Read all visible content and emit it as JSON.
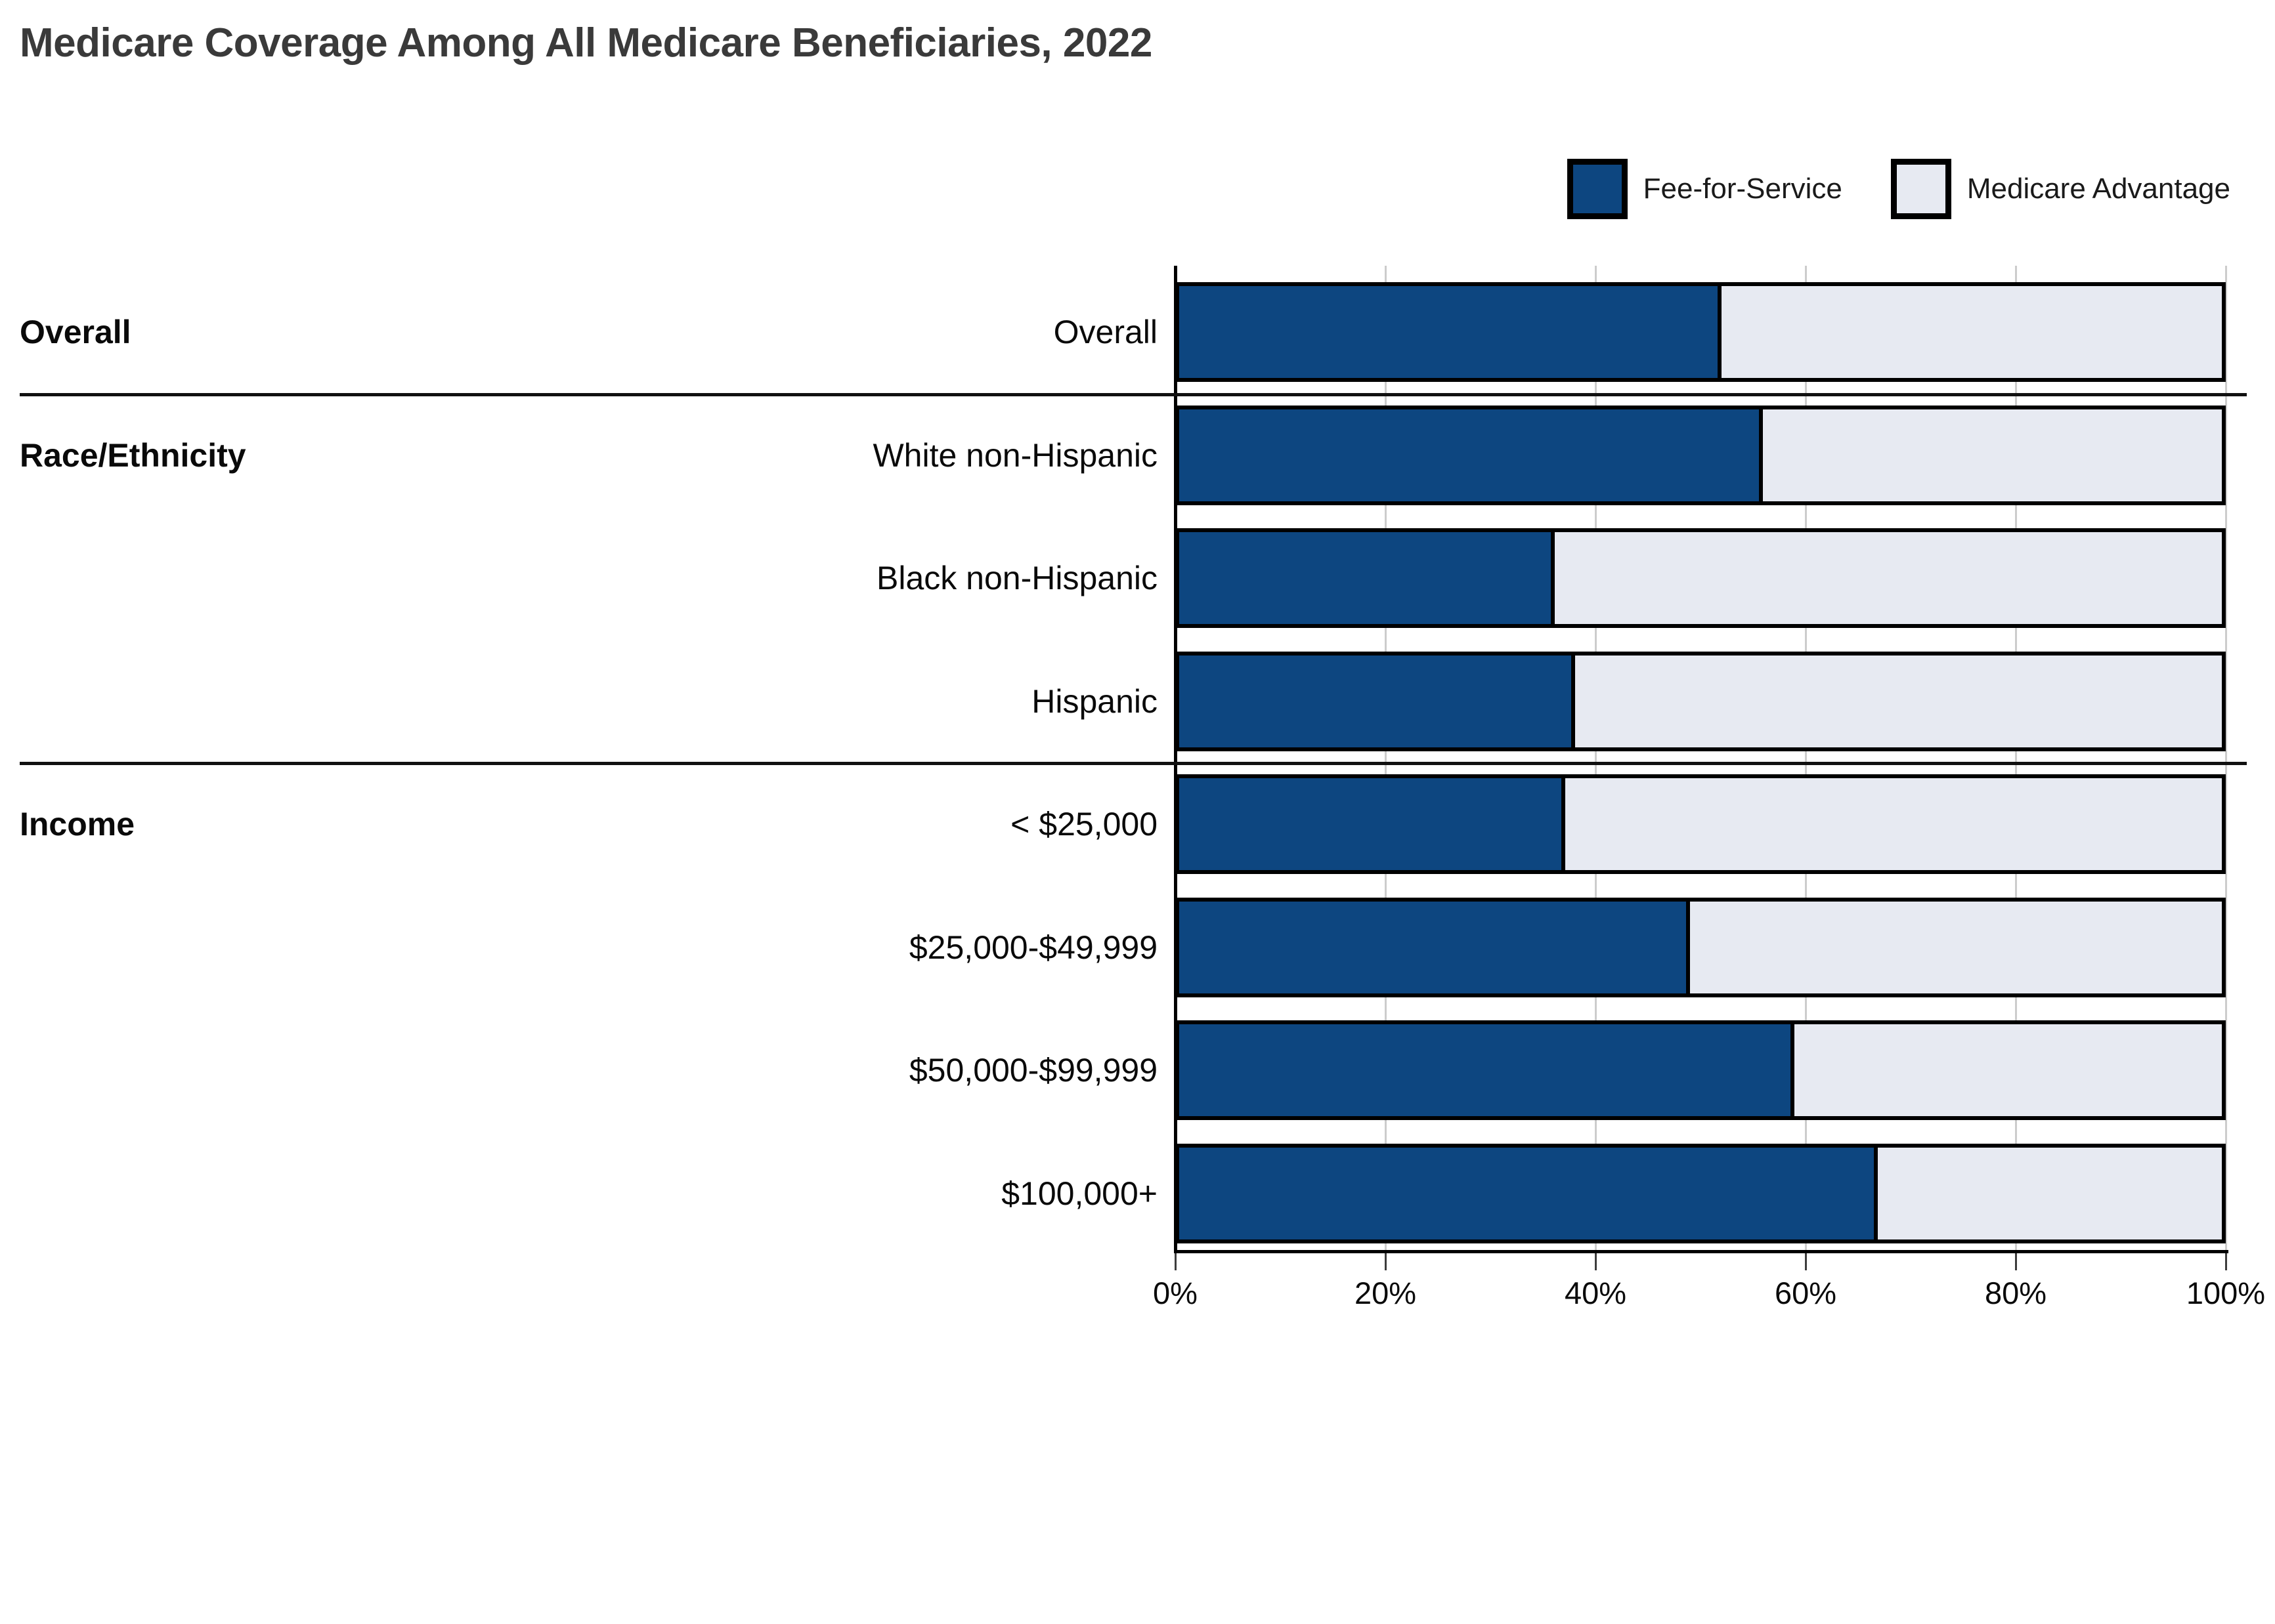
{
  "title": "Medicare Coverage Among All Medicare Beneficiaries, 2022",
  "legend": {
    "items": [
      {
        "label": "Fee-for-Service",
        "color": "#0d4680"
      },
      {
        "label": "Medicare Advantage",
        "color": "#e7eaf2"
      }
    ],
    "position": "top-right"
  },
  "colors": {
    "fee_for_service": "#0d4680",
    "medicare_advantage": "#e7eaf2",
    "bar_border": "#000000",
    "gridline": "#cccccc",
    "axis": "#000000",
    "title_text": "#3a3a3a",
    "label_text": "#0a0a0a"
  },
  "chart_data": {
    "type": "bar",
    "orientation": "horizontal",
    "stacked": true,
    "title": "Medicare Coverage Among All Medicare Beneficiaries, 2022",
    "xlabel": "",
    "ylabel": "",
    "xlim": [
      0,
      100
    ],
    "grid": "vertical",
    "legend_position": "top-right",
    "x_axis": {
      "tick_values": [
        0,
        20,
        40,
        60,
        80,
        100
      ],
      "tick_labels": [
        "0%",
        "20%",
        "40%",
        "60%",
        "80%",
        "100%"
      ]
    },
    "groups": [
      {
        "label": "Overall",
        "categories": [
          "Overall"
        ]
      },
      {
        "label": "Race/Ethnicity",
        "categories": [
          "White non-Hispanic",
          "Black non-Hispanic",
          "Hispanic"
        ]
      },
      {
        "label": "Income",
        "categories": [
          "< $25,000",
          "$25,000-$49,999",
          "$50,000-$99,999",
          "$100,000+"
        ]
      }
    ],
    "categories": [
      "Overall",
      "White non-Hispanic",
      "Black non-Hispanic",
      "Hispanic",
      "< $25,000",
      "$25,000-$49,999",
      "$50,000-$99,999",
      "$100,000+"
    ],
    "series": [
      {
        "name": "Fee-for-Service",
        "values": [
          52,
          56,
          36,
          38,
          37,
          49,
          59,
          67
        ]
      },
      {
        "name": "Medicare Advantage",
        "values": [
          48,
          44,
          64,
          62,
          63,
          51,
          41,
          33
        ]
      }
    ],
    "units": "percent"
  }
}
